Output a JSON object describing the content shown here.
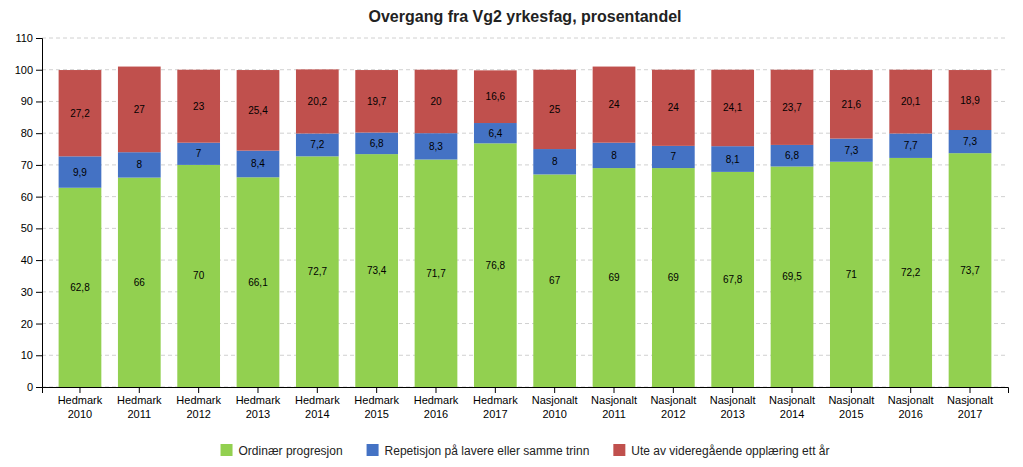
{
  "chart_data": {
    "type": "bar",
    "stacked": true,
    "title": "Overgang fra Vg2 yrkesfag, prosentandel",
    "categories": [
      "Hedmark\n2010",
      "Hedmark\n2011",
      "Hedmark\n2012",
      "Hedmark\n2013",
      "Hedmark\n2014",
      "Hedmark\n2015",
      "Hedmark\n2016",
      "Hedmark\n2017",
      "Nasjonalt\n2010",
      "Nasjonalt\n2011",
      "Nasjonalt\n2012",
      "Nasjonalt\n2013",
      "Nasjonalt\n2014",
      "Nasjonalt\n2015",
      "Nasjonalt\n2016",
      "Nasjonalt\n2017"
    ],
    "series": [
      {
        "name": "Ordinær progresjon",
        "color": "#92d050",
        "values": [
          62.8,
          66.0,
          70.0,
          66.1,
          72.7,
          73.4,
          71.7,
          76.8,
          67.0,
          69.0,
          69.0,
          67.8,
          69.5,
          71.0,
          72.2,
          73.7
        ],
        "value_labels": [
          "62,8",
          "66",
          "70",
          "66,1",
          "72,7",
          "73,4",
          "71,7",
          "76,8",
          "67",
          "69",
          "69",
          "67,8",
          "69,5",
          "71",
          "72,2",
          "73,7"
        ]
      },
      {
        "name": "Repetisjon på lavere eller samme trinn",
        "color": "#4472c4",
        "values": [
          9.9,
          8.0,
          7.0,
          8.4,
          7.2,
          6.8,
          8.3,
          6.4,
          8.0,
          8.0,
          7.0,
          8.1,
          6.8,
          7.3,
          7.7,
          7.3
        ],
        "value_labels": [
          "9,9",
          "8",
          "7",
          "8,4",
          "7,2",
          "6,8",
          "8,3",
          "6,4",
          "8",
          "8",
          "7",
          "8,1",
          "6,8",
          "7,3",
          "7,7",
          "7,3"
        ]
      },
      {
        "name": "Ute av videregående opplæring ett år",
        "color": "#c0504d",
        "values": [
          27.2,
          27.0,
          23.0,
          25.4,
          20.2,
          19.7,
          20.0,
          16.6,
          25.0,
          24.0,
          24.0,
          24.1,
          23.7,
          21.6,
          20.1,
          18.9
        ],
        "value_labels": [
          "27,2",
          "27",
          "23",
          "25,4",
          "20,2",
          "19,7",
          "20",
          "16,6",
          "25",
          "24",
          "24",
          "24,1",
          "23,7",
          "21,6",
          "20,1",
          "18,9"
        ]
      }
    ],
    "ylim": [
      0,
      110
    ],
    "yticks": [
      0,
      10,
      20,
      30,
      40,
      50,
      60,
      70,
      80,
      90,
      100,
      110
    ],
    "grid": true,
    "data_labels": true,
    "legend": "bottom"
  }
}
